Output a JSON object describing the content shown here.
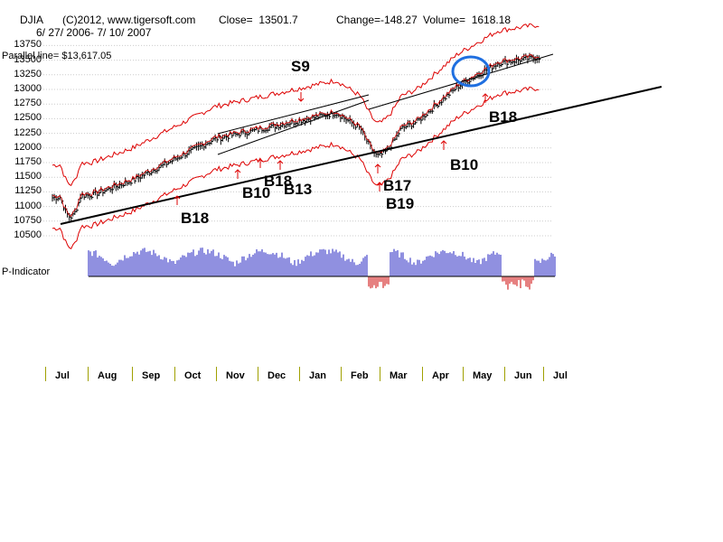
{
  "header": {
    "symbol": "DJIA",
    "copyright": "(C)2012, www.tigersoft.com",
    "close": "Close=  13501.7",
    "change": "Change=-148.27",
    "volume": "Volume=  1618.18",
    "date_range": "6/ 27/ 2006- 7/ 10/ 2007",
    "parallel_line": "Parallel line= $13,617.05"
  },
  "indicator_label": "P-Indicator",
  "chart_data": {
    "type": "line",
    "title": "DJIA 6/27/2006 - 7/10/2007",
    "ylim": [
      10500,
      13850
    ],
    "yticks": [
      10500,
      10750,
      11000,
      11250,
      11500,
      11750,
      12000,
      12250,
      12500,
      12750,
      13000,
      13250,
      13500,
      13750
    ],
    "ytick_labels": [
      "10500",
      "10750",
      "11000",
      "11250",
      "11500",
      "11750",
      "12000",
      "12250",
      "12500",
      "12750",
      "13000",
      "13250",
      "13500",
      "13750"
    ],
    "months": [
      "Jul",
      "Aug",
      "Sep",
      "Oct",
      "Nov",
      "Dec",
      "Jan",
      "Feb",
      "Mar",
      "Apr",
      "May",
      "Jun",
      "Jul"
    ],
    "series": [
      {
        "name": "DJIA close (approx, by month)",
        "x": [
          0,
          1,
          2,
          3,
          4,
          5,
          6,
          7,
          8,
          9,
          10,
          11,
          12
        ],
        "values": [
          11150,
          11200,
          11450,
          11800,
          12150,
          12300,
          12450,
          12600,
          12150,
          12450,
          13050,
          13450,
          13550
        ]
      }
    ],
    "annotations": [
      {
        "label": "S9",
        "x": 6.3,
        "y": 12800,
        "dir": "down"
      },
      {
        "label": "B18",
        "x": 3.3,
        "y": 11200,
        "dir": "up"
      },
      {
        "label": "B10",
        "x": 4.4,
        "y": 11500,
        "dir": "up"
      },
      {
        "label": "B18",
        "x": 5.0,
        "y": 11600,
        "dir": "up"
      },
      {
        "label": "B13",
        "x": 5.5,
        "y": 11600,
        "dir": "up"
      },
      {
        "label": "B17",
        "x": 8.1,
        "y": 11650,
        "dir": "up"
      },
      {
        "label": "B19",
        "x": 8.1,
        "y": 11350,
        "dir": "up"
      },
      {
        "label": "B10",
        "x": 9.6,
        "y": 12100,
        "dir": "up"
      },
      {
        "label": "B18",
        "x": 10.5,
        "y": 12950,
        "dir": "up"
      }
    ],
    "colors": {
      "price": "#000000",
      "bands": "#dd0000",
      "indicator_pos": "#2020c0",
      "indicator_neg": "#cc0000",
      "highlight": "#1f6fe0",
      "grid": "#cccccc",
      "month_tick": "#a0a000"
    }
  }
}
